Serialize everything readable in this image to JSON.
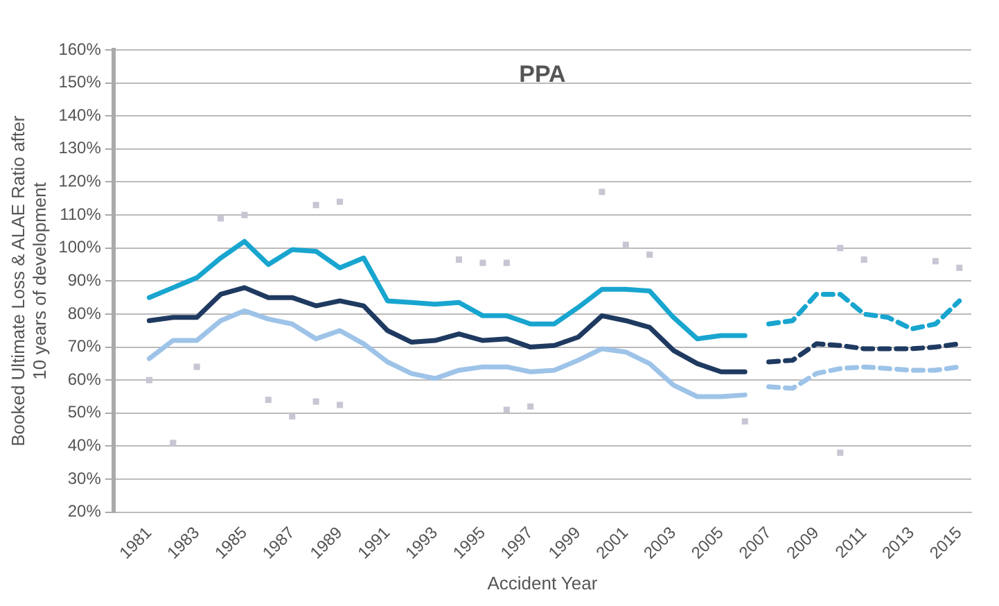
{
  "chart_data": {
    "type": "line",
    "title": "PPA",
    "xlabel": "Accident Year",
    "ylabel": "Booked Ultimate Loss & ALAE Ratio after\n10 years of development",
    "x": [
      1981,
      1982,
      1983,
      1984,
      1985,
      1986,
      1987,
      1988,
      1989,
      1990,
      1991,
      1992,
      1993,
      1994,
      1995,
      1996,
      1997,
      1998,
      1999,
      2000,
      2001,
      2002,
      2003,
      2004,
      2005,
      2006,
      2007,
      2008,
      2009,
      2010,
      2011,
      2012,
      2013,
      2014,
      2015
    ],
    "xlim": [
      1979.5,
      2015.5
    ],
    "xticks": [
      1981,
      1983,
      1985,
      1987,
      1989,
      1991,
      1993,
      1995,
      1997,
      1999,
      2001,
      2003,
      2005,
      2007,
      2009,
      2011,
      2013,
      2015
    ],
    "ylim": [
      20,
      160
    ],
    "yticks": [
      {
        "value": 20,
        "label": "20%"
      },
      {
        "value": 30,
        "label": "30%"
      },
      {
        "value": 40,
        "label": "40%"
      },
      {
        "value": 50,
        "label": "50%"
      },
      {
        "value": 60,
        "label": "60%"
      },
      {
        "value": 70,
        "label": "70%"
      },
      {
        "value": 80,
        "label": "80%"
      },
      {
        "value": 90,
        "label": "90%"
      },
      {
        "value": 100,
        "label": "100%"
      },
      {
        "value": 110,
        "label": "110%"
      },
      {
        "value": 120,
        "label": "120%"
      },
      {
        "value": 130,
        "label": "130%"
      },
      {
        "value": 140,
        "label": "140%"
      },
      {
        "value": 150,
        "label": "150%"
      },
      {
        "value": 160,
        "label": "160%"
      }
    ],
    "grid": "y",
    "marker": "none",
    "series": [
      {
        "type": "scatter",
        "marker": "square",
        "color": "#c9c5d3",
        "x": [
          1981,
          1982,
          1983,
          1984,
          1985,
          1986,
          1987,
          1988,
          1988,
          1989,
          1989,
          2000,
          2001,
          2002,
          1994,
          1995,
          1996,
          1996,
          1997,
          2010,
          2010,
          2011,
          2014,
          2015,
          2006
        ],
        "values": [
          60,
          41,
          64,
          109,
          110,
          54,
          49,
          113,
          53.5,
          114,
          52.5,
          117,
          101,
          98,
          96.5,
          95.5,
          95.5,
          51,
          52,
          100,
          38,
          96.5,
          96,
          94,
          47.5
        ]
      },
      {
        "color": "#9ec3e8",
        "line_style": "solid",
        "values": [
          66.5,
          72,
          72,
          78,
          81,
          78.5,
          77,
          72.5,
          75,
          71,
          65.5,
          62,
          60.5,
          63,
          64,
          64,
          62.5,
          63,
          66,
          69.5,
          68.5,
          65,
          58.5,
          55,
          55,
          55.5,
          null,
          null,
          null,
          null,
          null,
          null,
          null,
          null,
          null
        ]
      },
      {
        "color": "#9ec3e8",
        "line_style": "dashed",
        "values": [
          null,
          null,
          null,
          null,
          null,
          null,
          null,
          null,
          null,
          null,
          null,
          null,
          null,
          null,
          null,
          null,
          null,
          null,
          null,
          null,
          null,
          null,
          null,
          null,
          null,
          null,
          58,
          57.5,
          62,
          63.5,
          64,
          63.5,
          63,
          63,
          64
        ]
      },
      {
        "color": "#1f3a60",
        "line_style": "solid",
        "values": [
          78,
          79,
          79,
          86,
          88,
          85,
          85,
          82.5,
          84,
          82.5,
          75,
          71.5,
          72,
          74,
          72,
          72.5,
          70,
          70.5,
          73,
          79.5,
          78,
          76,
          69,
          65,
          62.5,
          62.5,
          null,
          null,
          null,
          null,
          null,
          null,
          null,
          null,
          null
        ]
      },
      {
        "color": "#1f3a60",
        "line_style": "dashed",
        "values": [
          null,
          null,
          null,
          null,
          null,
          null,
          null,
          null,
          null,
          null,
          null,
          null,
          null,
          null,
          null,
          null,
          null,
          null,
          null,
          null,
          null,
          null,
          null,
          null,
          null,
          null,
          65.5,
          66,
          71,
          70.5,
          69.5,
          69.5,
          69.5,
          70,
          71
        ]
      },
      {
        "color": "#18a5cf",
        "line_style": "solid",
        "values": [
          85,
          88,
          91,
          97,
          102,
          95,
          99.5,
          99,
          94,
          97,
          84,
          83.5,
          83,
          83.5,
          79.5,
          79.5,
          77,
          77,
          82,
          87.5,
          87.5,
          87,
          79,
          72.5,
          73.5,
          73.5,
          null,
          null,
          null,
          null,
          null,
          null,
          null,
          null,
          null
        ]
      },
      {
        "color": "#18a5cf",
        "line_style": "dashed",
        "values": [
          null,
          null,
          null,
          null,
          null,
          null,
          null,
          null,
          null,
          null,
          null,
          null,
          null,
          null,
          null,
          null,
          null,
          null,
          null,
          null,
          null,
          null,
          null,
          null,
          null,
          null,
          77,
          78,
          86,
          86,
          80,
          79,
          75.5,
          77,
          84
        ]
      }
    ]
  }
}
